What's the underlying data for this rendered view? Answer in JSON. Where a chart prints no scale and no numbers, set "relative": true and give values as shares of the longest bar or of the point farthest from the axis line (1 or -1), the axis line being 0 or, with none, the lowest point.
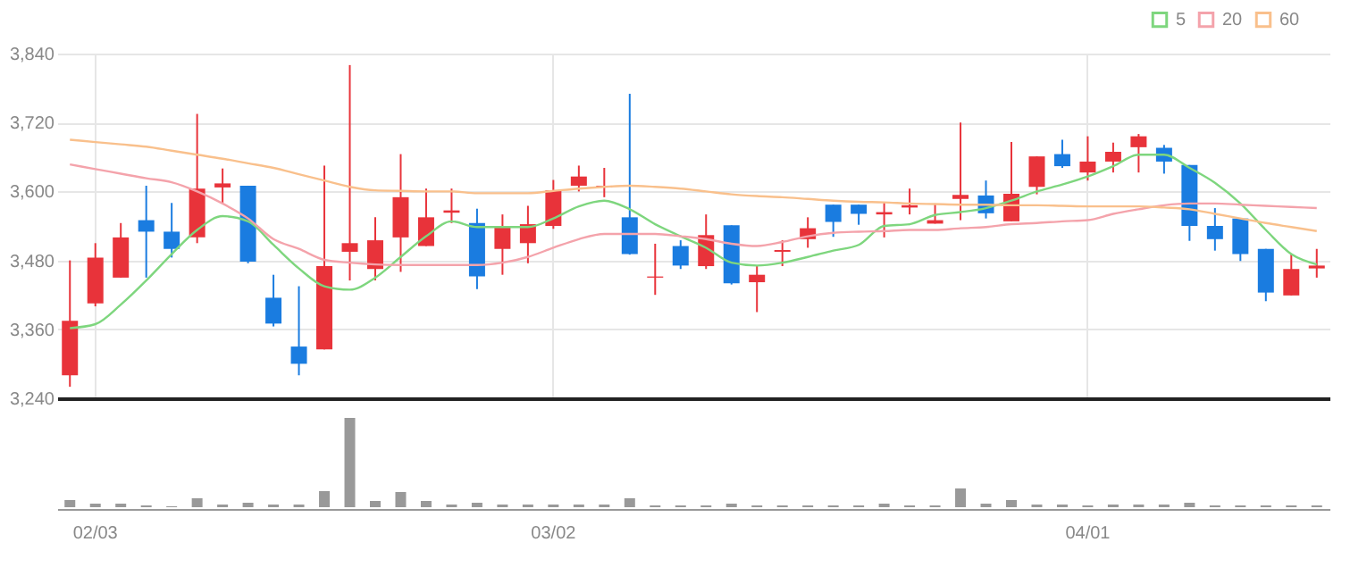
{
  "chart_data": [
    {
      "type": "candlestick",
      "categories": [
        null,
        null,
        null,
        null,
        null,
        null,
        null,
        null,
        null,
        null,
        null,
        null,
        null,
        null,
        null,
        null,
        null,
        null,
        null,
        null,
        null,
        null,
        null,
        null,
        null,
        null,
        null,
        null,
        null,
        null,
        null,
        null,
        null,
        null,
        null,
        null,
        null,
        null,
        null,
        null,
        null,
        null,
        null,
        null,
        null,
        null,
        null,
        null,
        null,
        null
      ],
      "ohlc": [
        [
          3280,
          3480,
          3260,
          3375
        ],
        [
          3405,
          3510,
          3400,
          3485
        ],
        [
          3450,
          3545,
          3450,
          3520
        ],
        [
          3550,
          3610,
          3450,
          3530
        ],
        [
          3530,
          3580,
          3485,
          3500
        ],
        [
          3520,
          3735,
          3510,
          3605
        ],
        [
          3607,
          3640,
          3580,
          3614
        ],
        [
          3610,
          3610,
          3475,
          3478
        ],
        [
          3415,
          3455,
          3365,
          3370
        ],
        [
          3330,
          3435,
          3280,
          3300
        ],
        [
          3325,
          3645,
          3325,
          3470
        ],
        [
          3495,
          3820,
          3445,
          3510
        ],
        [
          3465,
          3555,
          3445,
          3515
        ],
        [
          3520,
          3665,
          3460,
          3590
        ],
        [
          3505,
          3605,
          3505,
          3555
        ],
        [
          3563,
          3605,
          3545,
          3567
        ],
        [
          3545,
          3570,
          3430,
          3452
        ],
        [
          3500,
          3560,
          3455,
          3540
        ],
        [
          3510,
          3575,
          3475,
          3543
        ],
        [
          3540,
          3620,
          3535,
          3602
        ],
        [
          3610,
          3645,
          3600,
          3626
        ],
        [
          3607,
          3641,
          3590,
          3610
        ],
        [
          3555,
          3770,
          3490,
          3491
        ],
        [
          3450,
          3509,
          3420,
          3452
        ],
        [
          3505,
          3515,
          3465,
          3471
        ],
        [
          3470,
          3560,
          3465,
          3524
        ],
        [
          3541,
          3541,
          3438,
          3440
        ],
        [
          3442,
          3470,
          3390,
          3455
        ],
        [
          3495,
          3515,
          3470,
          3498
        ],
        [
          3517,
          3555,
          3502,
          3536
        ],
        [
          3577,
          3577,
          3521,
          3547
        ],
        [
          3577,
          3577,
          3542,
          3561
        ],
        [
          3560,
          3580,
          3520,
          3564
        ],
        [
          3572,
          3605,
          3560,
          3576
        ],
        [
          3544,
          3579,
          3544,
          3550
        ],
        [
          3587,
          3720,
          3550,
          3594
        ],
        [
          3593,
          3619,
          3553,
          3562
        ],
        [
          3548,
          3686,
          3548,
          3596
        ],
        [
          3608,
          3661,
          3595,
          3661
        ],
        [
          3665,
          3690,
          3641,
          3644
        ],
        [
          3633,
          3696,
          3619,
          3652
        ],
        [
          3652,
          3685,
          3633,
          3669
        ],
        [
          3677,
          3700,
          3633,
          3696
        ],
        [
          3676,
          3681,
          3631,
          3652
        ],
        [
          3646,
          3646,
          3514,
          3540
        ],
        [
          3540,
          3571,
          3497,
          3517
        ],
        [
          3553,
          3553,
          3479,
          3491
        ],
        [
          3500,
          3500,
          3409,
          3424
        ],
        [
          3419,
          3491,
          3419,
          3465
        ],
        [
          3466,
          3500,
          3450,
          3471
        ]
      ],
      "colors": [
        "#e8333a",
        "#e8333a",
        "#e8333a",
        "#1a7ce0",
        "#1a7ce0",
        "#e8333a",
        "#e8333a",
        "#1a7ce0",
        "#1a7ce0",
        "#1a7ce0",
        "#e8333a",
        "#e8333a",
        "#e8333a",
        "#e8333a",
        "#e8333a",
        "#e8333a",
        "#1a7ce0",
        "#e8333a",
        "#e8333a",
        "#e8333a",
        "#e8333a",
        "#e8333a",
        "#1a7ce0",
        "#e8333a",
        "#1a7ce0",
        "#e8333a",
        "#1a7ce0",
        "#e8333a",
        "#e8333a",
        "#e8333a",
        "#1a7ce0",
        "#1a7ce0",
        "#e8333a",
        "#e8333a",
        "#e8333a",
        "#e8333a",
        "#1a7ce0",
        "#e8333a",
        "#e8333a",
        "#1a7ce0",
        "#e8333a",
        "#e8333a",
        "#e8333a",
        "#1a7ce0",
        "#1a7ce0",
        "#1a7ce0",
        "#1a7ce0",
        "#1a7ce0",
        "#e8333a",
        "#e8333a"
      ],
      "series": [
        {
          "name": "5",
          "type": "line",
          "color": "#7ed67e",
          "values": [
            3362,
            3369,
            3403,
            3445,
            3491,
            3533,
            3557,
            3548,
            3507,
            3466,
            3435,
            3429,
            3450,
            3486,
            3522,
            3548,
            3538,
            3538,
            3538,
            3553,
            3574,
            3584,
            3569,
            3543,
            3522,
            3502,
            3476,
            3471,
            3476,
            3486,
            3497,
            3507,
            3540,
            3543,
            3559,
            3564,
            3571,
            3584,
            3600,
            3612,
            3626,
            3644,
            3664,
            3664,
            3641,
            3615,
            3579,
            3533,
            3491,
            3473
          ]
        },
        {
          "name": "20",
          "type": "line",
          "color": "#f4a3ab",
          "values": [
            3647,
            3639,
            3631,
            3623,
            3616,
            3600,
            3579,
            3553,
            3517,
            3500,
            3481,
            3476,
            3473,
            3472,
            3472,
            3472,
            3472,
            3476,
            3486,
            3502,
            3517,
            3526,
            3526,
            3526,
            3522,
            3517,
            3509,
            3505,
            3512,
            3522,
            3528,
            3530,
            3531,
            3533,
            3533,
            3536,
            3538,
            3543,
            3545,
            3548,
            3550,
            3561,
            3569,
            3576,
            3579,
            3579,
            3577,
            3575,
            3573,
            3571
          ]
        },
        {
          "name": "60",
          "type": "line",
          "color": "#f9c08c",
          "values": [
            3690,
            3686,
            3682,
            3678,
            3671,
            3664,
            3657,
            3649,
            3641,
            3630,
            3619,
            3608,
            3602,
            3601,
            3600,
            3600,
            3597,
            3597,
            3597,
            3601,
            3605,
            3608,
            3610,
            3608,
            3605,
            3600,
            3595,
            3592,
            3590,
            3587,
            3584,
            3582,
            3581,
            3579,
            3578,
            3577,
            3577,
            3576,
            3576,
            3575,
            3574,
            3574,
            3574,
            3572,
            3569,
            3561,
            3553,
            3545,
            3538,
            3531
          ]
        }
      ],
      "ylim": [
        3240,
        3840
      ],
      "yticks": [
        {
          "value": 3240,
          "label": "3,240"
        },
        {
          "value": 3360,
          "label": "3,360"
        },
        {
          "value": 3480,
          "label": "3,480"
        },
        {
          "value": 3600,
          "label": "3,600"
        },
        {
          "value": 3720,
          "label": "3,720"
        },
        {
          "value": 3840,
          "label": "3,840"
        }
      ],
      "grid": true,
      "legend": "top right",
      "tick_labels": "y"
    },
    {
      "type": "bar",
      "relative": true,
      "color": "#999999",
      "tick_labels": "x",
      "categories": [
        null,
        "02/03",
        null,
        null,
        null,
        null,
        null,
        null,
        null,
        null,
        null,
        null,
        null,
        null,
        null,
        null,
        null,
        null,
        null,
        "03/02",
        null,
        null,
        null,
        null,
        null,
        null,
        null,
        null,
        null,
        null,
        null,
        null,
        null,
        null,
        null,
        null,
        null,
        null,
        null,
        null,
        "04/01",
        null,
        null,
        null,
        null,
        null,
        null,
        null,
        null,
        null
      ],
      "values": [
        0.08,
        0.04,
        0.04,
        0.02,
        0.01,
        0.1,
        0.03,
        0.05,
        0.03,
        0.03,
        0.18,
        1,
        0.07,
        0.17,
        0.07,
        0.03,
        0.05,
        0.03,
        0.03,
        0.03,
        0.03,
        0.03,
        0.1,
        0.02,
        0.02,
        0.02,
        0.04,
        0.02,
        0.02,
        0.02,
        0.02,
        0.02,
        0.04,
        0.02,
        0.02,
        0.21,
        0.04,
        0.08,
        0.03,
        0.03,
        0.02,
        0.03,
        0.03,
        0.03,
        0.05,
        0.02,
        0.02,
        0.02,
        0.02,
        0.02
      ]
    }
  ]
}
